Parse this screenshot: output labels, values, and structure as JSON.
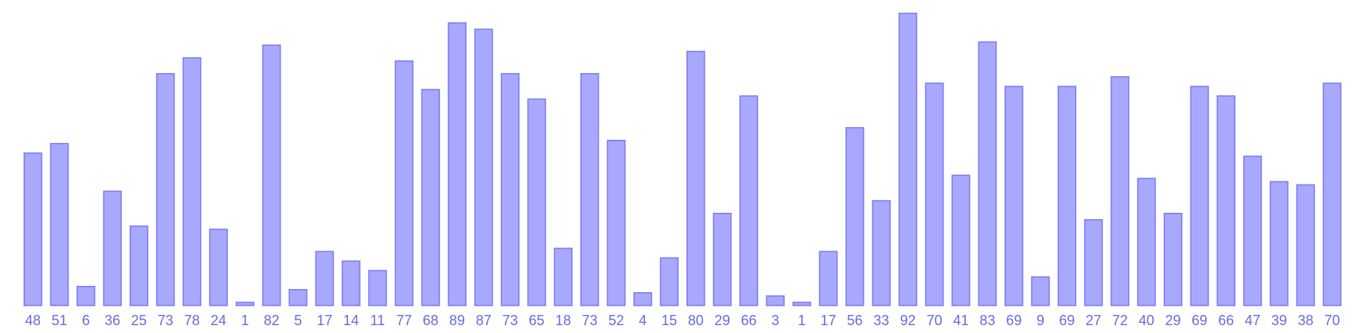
{
  "chart_data": {
    "type": "bar",
    "categories": [
      "48",
      "51",
      "6",
      "36",
      "25",
      "73",
      "78",
      "24",
      "1",
      "82",
      "5",
      "17",
      "14",
      "11",
      "77",
      "68",
      "89",
      "87",
      "73",
      "65",
      "18",
      "73",
      "52",
      "4",
      "15",
      "80",
      "29",
      "66",
      "3",
      "1",
      "17",
      "56",
      "33",
      "92",
      "70",
      "41",
      "83",
      "69",
      "9",
      "69",
      "27",
      "72",
      "40",
      "29",
      "69",
      "66",
      "47",
      "39",
      "38",
      "70"
    ],
    "values": [
      48,
      51,
      6,
      36,
      25,
      73,
      78,
      24,
      1,
      82,
      5,
      17,
      14,
      11,
      77,
      68,
      89,
      87,
      73,
      65,
      18,
      73,
      52,
      4,
      15,
      80,
      29,
      66,
      3,
      1,
      17,
      56,
      33,
      92,
      70,
      41,
      83,
      69,
      9,
      69,
      27,
      72,
      40,
      29,
      69,
      66,
      47,
      39,
      38,
      70
    ],
    "ylim": [
      0,
      92
    ],
    "grid": false,
    "colors": {
      "bar_fill": "#a8a8ff",
      "bar_stroke": "#7b7bf0",
      "label": "#6a6ae0"
    }
  }
}
